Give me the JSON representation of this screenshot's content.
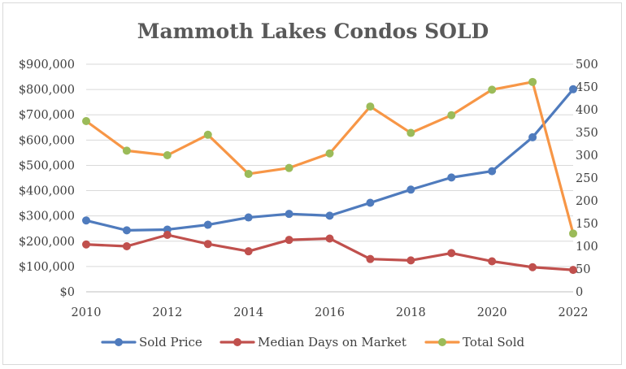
{
  "chart_data": {
    "type": "line",
    "title": "Mammoth Lakes Condos SOLD",
    "x": [
      2010,
      2011,
      2012,
      2013,
      2014,
      2015,
      2016,
      2017,
      2018,
      2019,
      2020,
      2021,
      2022
    ],
    "x_tick_labels": [
      "2010",
      "2012",
      "2014",
      "2016",
      "2018",
      "2020",
      "2022"
    ],
    "xlim": [
      2010,
      2022
    ],
    "y_left": {
      "ylim": [
        0,
        900000
      ],
      "tick_labels": [
        "$0",
        "$100,000",
        "$200,000",
        "$300,000",
        "$400,000",
        "$500,000",
        "$600,000",
        "$700,000",
        "$800,000",
        "$900,000"
      ]
    },
    "y_right": {
      "ylim": [
        0,
        500
      ],
      "tick_labels": [
        "0",
        "50",
        "100",
        "150",
        "200",
        "250",
        "300",
        "350",
        "400",
        "450",
        "500"
      ]
    },
    "grid": true,
    "legend_position": "bottom",
    "series": [
      {
        "name": "Sold Price",
        "axis": "left",
        "color": "#4f7bbd",
        "values": [
          282000,
          243000,
          246000,
          265000,
          294000,
          308000,
          301000,
          352000,
          404000,
          452000,
          477000,
          611000,
          801000
        ]
      },
      {
        "name": "Median Days on Market",
        "axis": "right",
        "color": "#c0504d",
        "values": [
          104,
          100,
          125,
          105,
          89,
          114,
          117,
          72,
          69,
          85,
          67,
          54,
          48
        ]
      },
      {
        "name": "Total Sold",
        "axis": "right",
        "color": "#f79646",
        "marker_color": "#9bbb59",
        "values": [
          375,
          310,
          300,
          345,
          259,
          272,
          304,
          407,
          349,
          388,
          444,
          461,
          128
        ]
      }
    ]
  }
}
